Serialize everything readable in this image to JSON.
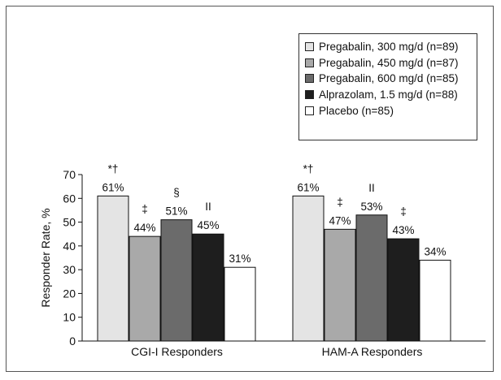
{
  "chart_data": {
    "type": "bar",
    "categories": [
      "CGI-I Responders",
      "HAM-A Responders"
    ],
    "series": [
      {
        "name": "Pregabalin, 300 mg/d (n=89)",
        "values": [
          61,
          61
        ],
        "annotations": [
          "*†",
          "*†"
        ],
        "color": "#e4e4e4"
      },
      {
        "name": "Pregabalin, 450 mg/d (n=87)",
        "values": [
          44,
          47
        ],
        "annotations": [
          "‡",
          "‡"
        ],
        "color": "#a9a9a9"
      },
      {
        "name": "Pregabalin, 600 mg/d (n=85)",
        "values": [
          51,
          53
        ],
        "annotations": [
          "§",
          "II"
        ],
        "color": "#6b6b6b"
      },
      {
        "name": "Alprazolam, 1.5 mg/d (n=88)",
        "values": [
          45,
          43
        ],
        "annotations": [
          "II",
          "‡"
        ],
        "color": "#1e1e1e"
      },
      {
        "name": "Placebo (n=85)",
        "values": [
          31,
          34
        ],
        "annotations": [
          "",
          ""
        ],
        "color": "#ffffff"
      }
    ],
    "data_labels": [
      [
        "61%",
        "61%"
      ],
      [
        "44%",
        "47%"
      ],
      [
        "51%",
        "53%"
      ],
      [
        "45%",
        "43%"
      ],
      [
        "31%",
        "34%"
      ]
    ],
    "ylabel": "Responder Rate, %",
    "xlabel": "",
    "ylim": [
      0,
      70
    ],
    "yticks": [
      0,
      10,
      20,
      30,
      40,
      50,
      60,
      70
    ],
    "grid": false,
    "legend": "top-right"
  }
}
